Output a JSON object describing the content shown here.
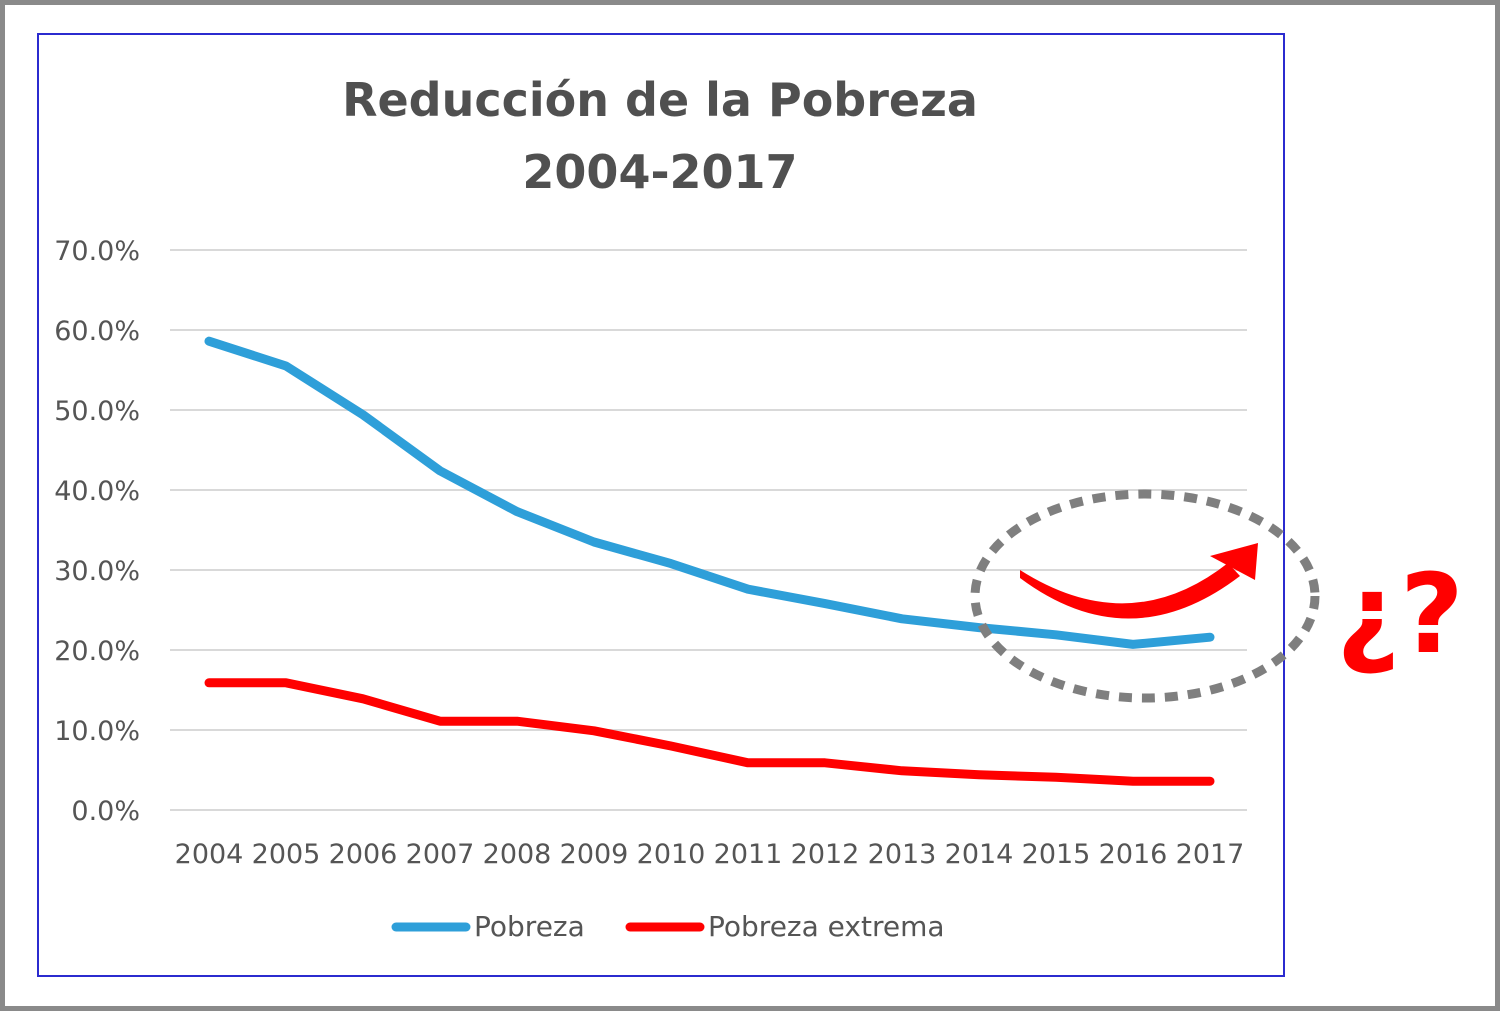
{
  "chart_data": {
    "type": "line",
    "title": [
      "Reducción de la Pobreza",
      "2004-2017"
    ],
    "xlabel": "",
    "ylabel": "",
    "categories": [
      "2004",
      "2005",
      "2006",
      "2007",
      "2008",
      "2009",
      "2010",
      "2011",
      "2012",
      "2013",
      "2014",
      "2015",
      "2016",
      "2017"
    ],
    "series": [
      {
        "name": "Pobreza",
        "color": "#2e9fd9",
        "values": [
          58.6,
          55.5,
          49.4,
          42.4,
          37.3,
          33.5,
          30.8,
          27.6,
          25.8,
          23.9,
          22.8,
          21.9,
          20.7,
          21.6
        ]
      },
      {
        "name": "Pobreza extrema",
        "color": "#ff0000",
        "values": [
          15.9,
          15.9,
          13.9,
          11.1,
          11.1,
          9.9,
          8.0,
          5.9,
          5.9,
          4.9,
          4.4,
          4.1,
          3.6,
          3.6
        ]
      }
    ],
    "ylim": [
      0,
      70
    ],
    "yticks": [
      "0.0%",
      "10.0%",
      "20.0%",
      "30.0%",
      "40.0%",
      "50.0%",
      "60.0%",
      "70.0%"
    ],
    "grid": true,
    "legend": "bottom"
  },
  "annotation": {
    "question_mark": "¿?",
    "question_color": "#ff0000",
    "circle_color": "#7f7f7f",
    "arrow_color": "#ff0000"
  }
}
